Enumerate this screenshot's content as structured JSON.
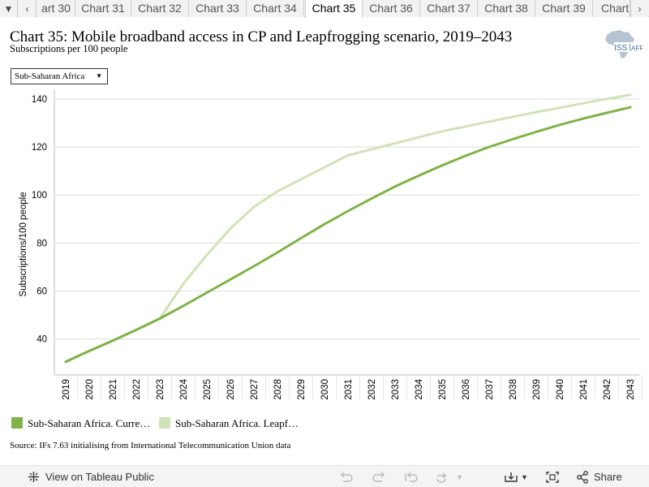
{
  "tabs": {
    "items": [
      "art 30",
      "Chart 31",
      "Chart 32",
      "Chart 33",
      "Chart 34",
      "Chart 35",
      "Chart 36",
      "Chart 37",
      "Chart 38",
      "Chart 39",
      "Chart"
    ],
    "active_index": 5
  },
  "header": {
    "title": "Chart 35: Mobile broadband access in CP and Leapfrogging scenario, 2019–2043",
    "subtitle": "Subscriptions per 100 people",
    "logo_text": "ISS AFRICA"
  },
  "filter": {
    "selected": "Sub-Saharan Africa"
  },
  "colors": {
    "current": "#7fb347",
    "leapfrog": "#cfe3b6",
    "grid": "#dddddd"
  },
  "chart_data": {
    "type": "line",
    "title": "Chart 35: Mobile broadband access in CP and Leapfrogging scenario, 2019–2043",
    "subtitle": "Subscriptions per 100 people",
    "xlabel": "",
    "ylabel": "Subscriptions/100 people",
    "x": [
      "2019",
      "2020",
      "2021",
      "2022",
      "2023",
      "2024",
      "2025",
      "2026",
      "2027",
      "2028",
      "2029",
      "2030",
      "2031",
      "2032",
      "2033",
      "2034",
      "2035",
      "2036",
      "2037",
      "2038",
      "2039",
      "2040",
      "2041",
      "2042",
      "2043"
    ],
    "yticks": [
      40,
      60,
      80,
      100,
      120,
      140
    ],
    "ylim": [
      25,
      144
    ],
    "grid": true,
    "legend_position": "bottom-left",
    "series": [
      {
        "name": "Sub-Saharan Africa. Curre…",
        "color_key": "current",
        "values": [
          30.5,
          35,
          39.3,
          43.8,
          48.5,
          53.8,
          59.3,
          64.8,
          70.3,
          76,
          82,
          87.8,
          93.3,
          98.5,
          103.5,
          108,
          112.3,
          116.3,
          120,
          123.2,
          126.3,
          129.2,
          131.8,
          134.2,
          136.5
        ]
      },
      {
        "name": "Sub-Saharan Africa. Leapf…",
        "color_key": "leapfrog",
        "values": [
          30.5,
          35,
          39.3,
          43.8,
          48.5,
          63,
          75,
          86,
          95,
          101.5,
          106.5,
          111.5,
          116.5,
          119,
          121.5,
          124,
          126.5,
          128.5,
          130.5,
          132.5,
          134.5,
          136.3,
          138.2,
          140,
          141.7
        ]
      }
    ]
  },
  "legend": {
    "items": [
      "Sub-Saharan Africa. Curre…",
      "Sub-Saharan Africa. Leapf…"
    ]
  },
  "source_text": "Source: IFs 7.63 initialising from International Telecommunication Union data",
  "toolbar": {
    "view_label": "View on Tableau Public",
    "share_label": "Share"
  }
}
